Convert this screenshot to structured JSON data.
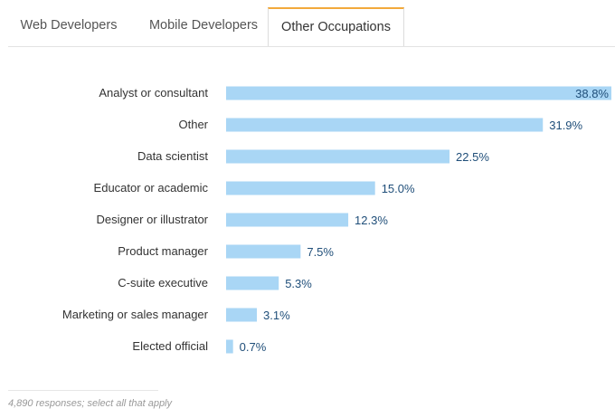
{
  "tabs": [
    {
      "label": "Web Developers",
      "active": false
    },
    {
      "label": "Mobile Developers",
      "active": false
    },
    {
      "label": "Other Occupations",
      "active": true
    }
  ],
  "colors": {
    "bar": "#a9d6f5",
    "value_text": "#1f4e79",
    "active_tab_accent": "#f2a93b"
  },
  "chart_data": {
    "type": "bar",
    "orientation": "horizontal",
    "categories": [
      "Analyst or consultant",
      "Other",
      "Data scientist",
      "Educator or academic",
      "Designer or illustrator",
      "Product manager",
      "C-suite executive",
      "Marketing or sales manager",
      "Elected official"
    ],
    "values": [
      38.8,
      31.9,
      22.5,
      15.0,
      12.3,
      7.5,
      5.3,
      3.1,
      0.7
    ],
    "value_labels": [
      "38.8%",
      "31.9%",
      "22.5%",
      "15.0%",
      "12.3%",
      "7.5%",
      "5.3%",
      "3.1%",
      "0.7%"
    ],
    "unit": "%",
    "xlim": [
      0,
      38.8
    ],
    "grid": false,
    "legend": "none"
  },
  "footnote": "4,890 responses; select all that apply"
}
